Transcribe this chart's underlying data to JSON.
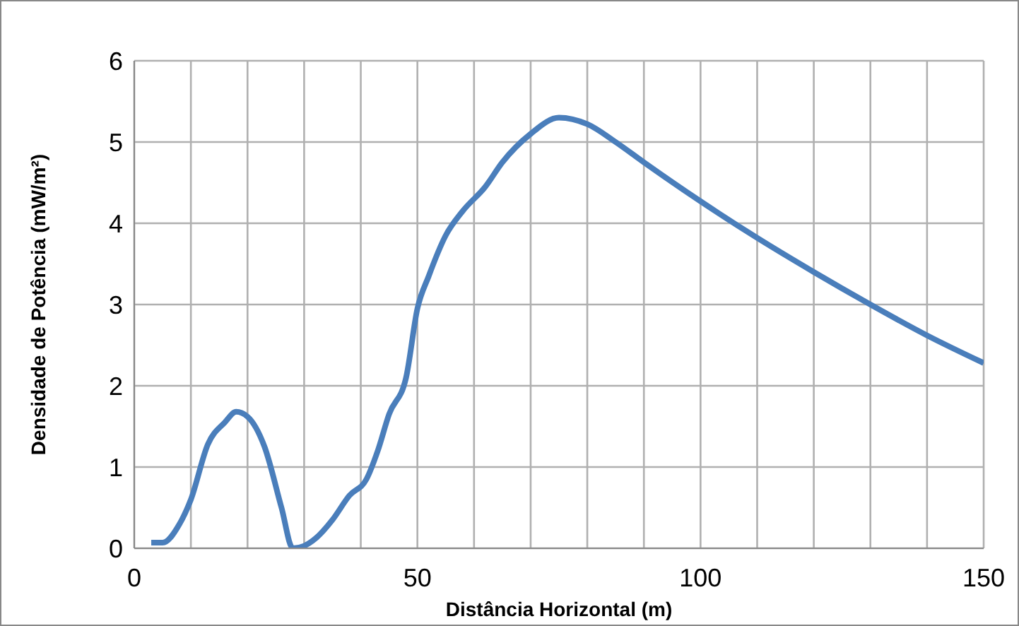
{
  "chart_data": {
    "type": "line",
    "xlabel": "Distância Horizontal (m)",
    "ylabel": "Densidade de Potência  (mW/m²)",
    "x": [
      3,
      5,
      8,
      10,
      13,
      16,
      18,
      20,
      23,
      26,
      28,
      30,
      32,
      35,
      38,
      41,
      43,
      45,
      48,
      50,
      52,
      55,
      58,
      62,
      65,
      70,
      75,
      80,
      85,
      90,
      100,
      110,
      120,
      130,
      140,
      150
    ],
    "series": [
      {
        "color": "#4a7ebb",
        "values": [
          0.07,
          0.07,
          0.3,
          0.6,
          1.28,
          1.55,
          1.68,
          1.62,
          1.25,
          0.5,
          0.0,
          0.03,
          0.12,
          0.35,
          0.65,
          0.85,
          1.2,
          1.65,
          2.1,
          2.95,
          3.35,
          3.85,
          4.15,
          4.45,
          4.75,
          5.1,
          5.3,
          5.22,
          5.0,
          4.75,
          4.27,
          3.82,
          3.4,
          3.0,
          2.62,
          2.28
        ]
      }
    ],
    "xlim": [
      0,
      150
    ],
    "xticks": [
      0,
      {
        "value": 10,
        "label": null
      },
      {
        "value": 20,
        "label": null
      },
      {
        "value": 30,
        "label": null
      },
      {
        "value": 40,
        "label": null
      },
      50,
      {
        "value": 60,
        "label": null
      },
      {
        "value": 70,
        "label": null
      },
      {
        "value": 80,
        "label": null
      },
      {
        "value": 90,
        "label": null
      },
      100,
      {
        "value": 110,
        "label": null
      },
      {
        "value": 120,
        "label": null
      },
      {
        "value": 130,
        "label": null
      },
      {
        "value": 140,
        "label": null
      },
      150
    ],
    "ylim": [
      0,
      6
    ],
    "yticks": [
      0,
      1,
      2,
      3,
      4,
      5,
      6
    ],
    "grid": true,
    "marker": "none",
    "line_style": "solid",
    "legend": false
  }
}
